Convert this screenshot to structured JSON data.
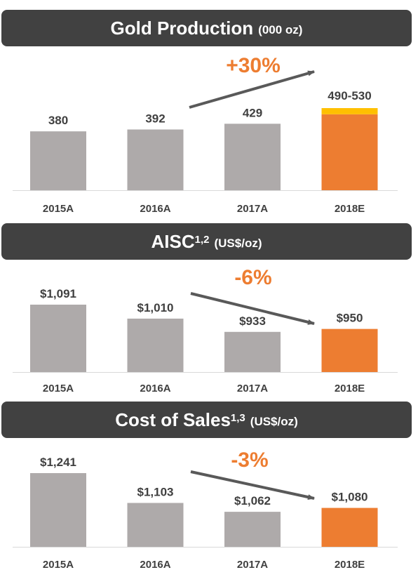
{
  "colors": {
    "banner": "#414141",
    "actual": "#aeaaaa",
    "estimate": "#ed7d31",
    "range": "#ffc000",
    "arrow": "#595959",
    "text": "#404040"
  },
  "chart_data": [
    {
      "type": "bar",
      "title": "Gold Production",
      "title_sup": "",
      "unit": "(000 oz)",
      "categories": [
        "2015A",
        "2016A",
        "2017A",
        "2018E"
      ],
      "values": [
        380,
        392,
        429,
        490
      ],
      "range_top": [
        null,
        null,
        null,
        530
      ],
      "data_labels": [
        "380",
        "392",
        "429",
        "490-530"
      ],
      "ylim": [
        0,
        530
      ],
      "change_label": "+30%",
      "trend_arrow": {
        "from": "2016A",
        "to": "2018E",
        "direction": "up"
      }
    },
    {
      "type": "bar",
      "title": "AISC",
      "title_sup": "1,2",
      "unit": "(US$/oz)",
      "categories": [
        "2015A",
        "2016A",
        "2017A",
        "2018E"
      ],
      "values": [
        1091,
        1010,
        933,
        950
      ],
      "range_top": [
        null,
        null,
        null,
        null
      ],
      "data_labels": [
        "$1,091",
        "$1,010",
        "$933",
        "$950"
      ],
      "ylim": [
        700,
        1091
      ],
      "change_label": "-6%",
      "trend_arrow": {
        "from": "2016A",
        "to": "2018E",
        "direction": "down"
      }
    },
    {
      "type": "bar",
      "title": "Cost of Sales",
      "title_sup": "1,3",
      "unit": "(US$/oz)",
      "categories": [
        "2015A",
        "2016A",
        "2017A",
        "2018E"
      ],
      "values": [
        1241,
        1103,
        1062,
        1080
      ],
      "range_top": [
        null,
        null,
        null,
        null
      ],
      "data_labels": [
        "$1,241",
        "$1,103",
        "$1,062",
        "$1,080"
      ],
      "ylim": [
        900,
        1241
      ],
      "change_label": "-3%",
      "trend_arrow": {
        "from": "2016A",
        "to": "2018E",
        "direction": "down"
      }
    }
  ]
}
